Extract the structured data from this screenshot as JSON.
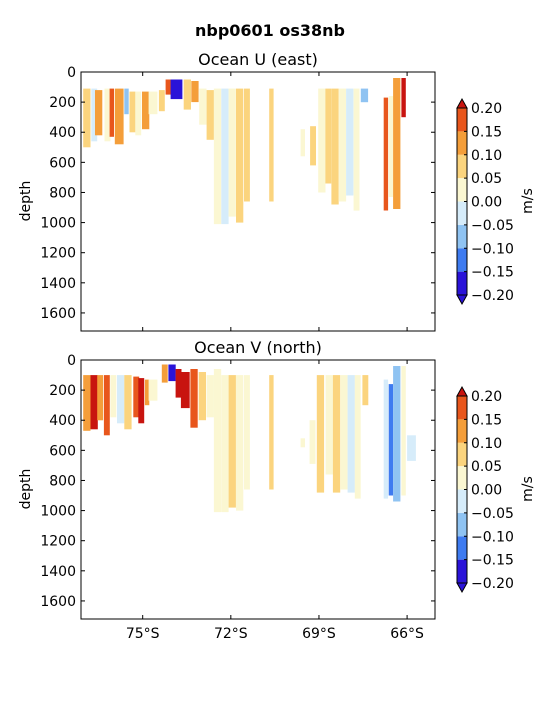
{
  "suptitle": "nbp0601 os38nb",
  "colors": {
    "levels": [
      "#2a13d8",
      "#3e7bf0",
      "#8fc3f2",
      "#d6ecfa",
      "#fbf7d2",
      "#fbd47e",
      "#f49e3a",
      "#e8561c",
      "#c8140f"
    ],
    "axis": "#000000",
    "background": "#ffffff"
  },
  "chart_data": [
    {
      "type": "heatmap",
      "title": "Ocean U (east)",
      "ylabel": "depth",
      "ylim": [
        1720,
        0
      ],
      "xlim": [
        -77.1,
        -65.05
      ],
      "y_ticks": [
        0,
        200,
        400,
        600,
        800,
        1000,
        1200,
        1400,
        1600
      ],
      "x_ticks": [
        -75,
        -72,
        -69,
        -66
      ],
      "x_tick_labels": [],
      "colorbar": {
        "label": "m/s",
        "levels": [
          -0.2,
          -0.15,
          -0.1,
          -0.05,
          0.0,
          0.05,
          0.1,
          0.15,
          0.2
        ],
        "tick_labels": [
          "0.20",
          "0.15",
          "0.10",
          "0.05",
          "0.00",
          "−0.05",
          "−0.10",
          "−0.15",
          "−0.20"
        ],
        "extend": "both"
      },
      "cells": [
        {
          "lon": -76.9,
          "dlon": 0.25,
          "top": 110,
          "bottom": 500,
          "value": 0.02
        },
        {
          "lon": -76.65,
          "dlon": 0.2,
          "top": 110,
          "bottom": 460,
          "value": -0.06
        },
        {
          "lon": -76.5,
          "dlon": 0.25,
          "top": 120,
          "bottom": 420,
          "value": 0.08
        },
        {
          "lon": -76.2,
          "dlon": 0.2,
          "top": 110,
          "bottom": 460,
          "value": -0.03
        },
        {
          "lon": -76.05,
          "dlon": 0.15,
          "top": 110,
          "bottom": 430,
          "value": 0.12
        },
        {
          "lon": -75.8,
          "dlon": 0.3,
          "top": 110,
          "bottom": 480,
          "value": 0.07
        },
        {
          "lon": -75.55,
          "dlon": 0.15,
          "top": 110,
          "bottom": 280,
          "value": -0.13
        },
        {
          "lon": -75.35,
          "dlon": 0.2,
          "top": 130,
          "bottom": 400,
          "value": 0.04
        },
        {
          "lon": -75.15,
          "dlon": 0.2,
          "top": 130,
          "bottom": 420,
          "value": -0.02
        },
        {
          "lon": -74.9,
          "dlon": 0.25,
          "top": 130,
          "bottom": 380,
          "value": 0.06
        },
        {
          "lon": -74.65,
          "dlon": 0.3,
          "top": 130,
          "bottom": 280,
          "value": -0.04
        },
        {
          "lon": -74.35,
          "dlon": 0.2,
          "top": 120,
          "bottom": 260,
          "value": 0.02
        },
        {
          "lon": -74.12,
          "dlon": 0.2,
          "top": 50,
          "bottom": 150,
          "value": 0.14
        },
        {
          "lon": -73.85,
          "dlon": 0.4,
          "top": 50,
          "bottom": 180,
          "value": -0.22
        },
        {
          "lon": -73.48,
          "dlon": 0.25,
          "top": 50,
          "bottom": 250,
          "value": 0.03
        },
        {
          "lon": -73.22,
          "dlon": 0.25,
          "top": 60,
          "bottom": 200,
          "value": 0.07
        },
        {
          "lon": -72.95,
          "dlon": 0.25,
          "top": 110,
          "bottom": 350,
          "value": -0.02
        },
        {
          "lon": -72.7,
          "dlon": 0.25,
          "top": 120,
          "bottom": 450,
          "value": 0.03
        },
        {
          "lon": -72.45,
          "dlon": 0.25,
          "top": 110,
          "bottom": 1010,
          "value": -0.04
        },
        {
          "lon": -72.2,
          "dlon": 0.25,
          "top": 110,
          "bottom": 1010,
          "value": -0.07
        },
        {
          "lon": -71.95,
          "dlon": 0.25,
          "top": 110,
          "bottom": 960,
          "value": -0.02
        },
        {
          "lon": -71.7,
          "dlon": 0.25,
          "top": 110,
          "bottom": 1000,
          "value": 0.03
        },
        {
          "lon": -71.45,
          "dlon": 0.2,
          "top": 110,
          "bottom": 860,
          "value": 0.02
        },
        {
          "lon": -70.62,
          "dlon": 0.15,
          "top": 110,
          "bottom": 860,
          "value": 0.02
        },
        {
          "lon": -69.55,
          "dlon": 0.15,
          "top": 380,
          "bottom": 560,
          "value": -0.03
        },
        {
          "lon": -69.2,
          "dlon": 0.2,
          "top": 360,
          "bottom": 620,
          "value": 0.02
        },
        {
          "lon": -68.9,
          "dlon": 0.25,
          "top": 110,
          "bottom": 800,
          "value": -0.02
        },
        {
          "lon": -68.68,
          "dlon": 0.2,
          "top": 110,
          "bottom": 740,
          "value": 0.03
        },
        {
          "lon": -68.45,
          "dlon": 0.25,
          "top": 110,
          "bottom": 880,
          "value": 0.02
        },
        {
          "lon": -68.2,
          "dlon": 0.25,
          "top": 110,
          "bottom": 860,
          "value": -0.04
        },
        {
          "lon": -67.95,
          "dlon": 0.25,
          "top": 110,
          "bottom": 820,
          "value": -0.06
        },
        {
          "lon": -67.72,
          "dlon": 0.2,
          "top": 110,
          "bottom": 920,
          "value": -0.02
        },
        {
          "lon": -67.45,
          "dlon": 0.25,
          "top": 110,
          "bottom": 200,
          "value": -0.13
        },
        {
          "lon": -66.72,
          "dlon": 0.15,
          "top": 170,
          "bottom": 920,
          "value": 0.11
        },
        {
          "lon": -66.55,
          "dlon": 0.15,
          "top": 160,
          "bottom": 830,
          "value": -0.03
        },
        {
          "lon": -66.35,
          "dlon": 0.25,
          "top": 40,
          "bottom": 910,
          "value": 0.07
        },
        {
          "lon": -66.12,
          "dlon": 0.15,
          "top": 40,
          "bottom": 300,
          "value": 0.16
        }
      ]
    },
    {
      "type": "heatmap",
      "title": "Ocean V (north)",
      "ylabel": "depth",
      "ylim": [
        1720,
        0
      ],
      "xlim": [
        -77.1,
        -65.05
      ],
      "y_ticks": [
        0,
        200,
        400,
        600,
        800,
        1000,
        1200,
        1400,
        1600
      ],
      "x_ticks": [
        -75,
        -72,
        -69,
        -66
      ],
      "x_tick_labels": [
        "75°S",
        "72°S",
        "69°S",
        "66°S"
      ],
      "colorbar": {
        "label": "m/s",
        "levels": [
          -0.2,
          -0.15,
          -0.1,
          -0.05,
          0.0,
          0.05,
          0.1,
          0.15,
          0.2
        ],
        "tick_labels": [
          "0.20",
          "0.15",
          "0.10",
          "0.05",
          "0.00",
          "−0.05",
          "−0.10",
          "−0.15",
          "−0.20"
        ],
        "extend": "both"
      },
      "cells": [
        {
          "lon": -76.9,
          "dlon": 0.25,
          "top": 100,
          "bottom": 470,
          "value": 0.08
        },
        {
          "lon": -76.65,
          "dlon": 0.25,
          "top": 100,
          "bottom": 460,
          "value": 0.17
        },
        {
          "lon": -76.45,
          "dlon": 0.2,
          "top": 100,
          "bottom": 400,
          "value": 0.06
        },
        {
          "lon": -76.22,
          "dlon": 0.2,
          "top": 100,
          "bottom": 500,
          "value": 0.12
        },
        {
          "lon": -76.0,
          "dlon": 0.2,
          "top": 100,
          "bottom": 380,
          "value": -0.04
        },
        {
          "lon": -75.75,
          "dlon": 0.25,
          "top": 100,
          "bottom": 420,
          "value": -0.09
        },
        {
          "lon": -75.5,
          "dlon": 0.25,
          "top": 100,
          "bottom": 460,
          "value": 0.02
        },
        {
          "lon": -75.22,
          "dlon": 0.2,
          "top": 110,
          "bottom": 380,
          "value": 0.13
        },
        {
          "lon": -75.05,
          "dlon": 0.2,
          "top": 120,
          "bottom": 420,
          "value": 0.16
        },
        {
          "lon": -74.85,
          "dlon": 0.15,
          "top": 130,
          "bottom": 300,
          "value": 0.07
        },
        {
          "lon": -74.65,
          "dlon": 0.3,
          "top": 130,
          "bottom": 270,
          "value": -0.03
        },
        {
          "lon": -74.25,
          "dlon": 0.2,
          "top": 30,
          "bottom": 150,
          "value": 0.09
        },
        {
          "lon": -74.0,
          "dlon": 0.25,
          "top": 30,
          "bottom": 140,
          "value": -0.21
        },
        {
          "lon": -73.78,
          "dlon": 0.2,
          "top": 60,
          "bottom": 250,
          "value": 0.19
        },
        {
          "lon": -73.55,
          "dlon": 0.3,
          "top": 80,
          "bottom": 320,
          "value": 0.21
        },
        {
          "lon": -73.25,
          "dlon": 0.25,
          "top": 60,
          "bottom": 450,
          "value": 0.11
        },
        {
          "lon": -72.97,
          "dlon": 0.25,
          "top": 80,
          "bottom": 400,
          "value": 0.04
        },
        {
          "lon": -72.7,
          "dlon": 0.25,
          "top": 100,
          "bottom": 380,
          "value": -0.02
        },
        {
          "lon": -72.45,
          "dlon": 0.25,
          "top": 60,
          "bottom": 1010,
          "value": -0.04
        },
        {
          "lon": -72.2,
          "dlon": 0.25,
          "top": 100,
          "bottom": 1010,
          "value": -0.03
        },
        {
          "lon": -71.95,
          "dlon": 0.25,
          "top": 100,
          "bottom": 980,
          "value": 0.03
        },
        {
          "lon": -71.7,
          "dlon": 0.25,
          "top": 100,
          "bottom": 1000,
          "value": -0.05
        },
        {
          "lon": -71.45,
          "dlon": 0.2,
          "top": 100,
          "bottom": 860,
          "value": -0.02
        },
        {
          "lon": -70.62,
          "dlon": 0.15,
          "top": 100,
          "bottom": 860,
          "value": 0.02
        },
        {
          "lon": -69.55,
          "dlon": 0.15,
          "top": 520,
          "bottom": 580,
          "value": -0.03
        },
        {
          "lon": -69.22,
          "dlon": 0.2,
          "top": 400,
          "bottom": 690,
          "value": -0.04
        },
        {
          "lon": -68.95,
          "dlon": 0.25,
          "top": 100,
          "bottom": 880,
          "value": 0.02
        },
        {
          "lon": -68.65,
          "dlon": 0.25,
          "top": 100,
          "bottom": 760,
          "value": -0.03
        },
        {
          "lon": -68.4,
          "dlon": 0.25,
          "top": 100,
          "bottom": 880,
          "value": 0.03
        },
        {
          "lon": -68.15,
          "dlon": 0.25,
          "top": 100,
          "bottom": 860,
          "value": -0.03
        },
        {
          "lon": -67.9,
          "dlon": 0.25,
          "top": 100,
          "bottom": 880,
          "value": -0.07
        },
        {
          "lon": -67.68,
          "dlon": 0.2,
          "top": 100,
          "bottom": 920,
          "value": -0.03
        },
        {
          "lon": -67.42,
          "dlon": 0.2,
          "top": 100,
          "bottom": 300,
          "value": 0.03
        },
        {
          "lon": -66.72,
          "dlon": 0.15,
          "top": 130,
          "bottom": 920,
          "value": -0.08
        },
        {
          "lon": -66.55,
          "dlon": 0.15,
          "top": 160,
          "bottom": 900,
          "value": -0.16
        },
        {
          "lon": -66.35,
          "dlon": 0.25,
          "top": 40,
          "bottom": 940,
          "value": -0.11
        },
        {
          "lon": -66.12,
          "dlon": 0.15,
          "top": 40,
          "bottom": 900,
          "value": -0.05
        },
        {
          "lon": -65.85,
          "dlon": 0.3,
          "top": 500,
          "bottom": 670,
          "value": -0.1
        }
      ]
    }
  ]
}
